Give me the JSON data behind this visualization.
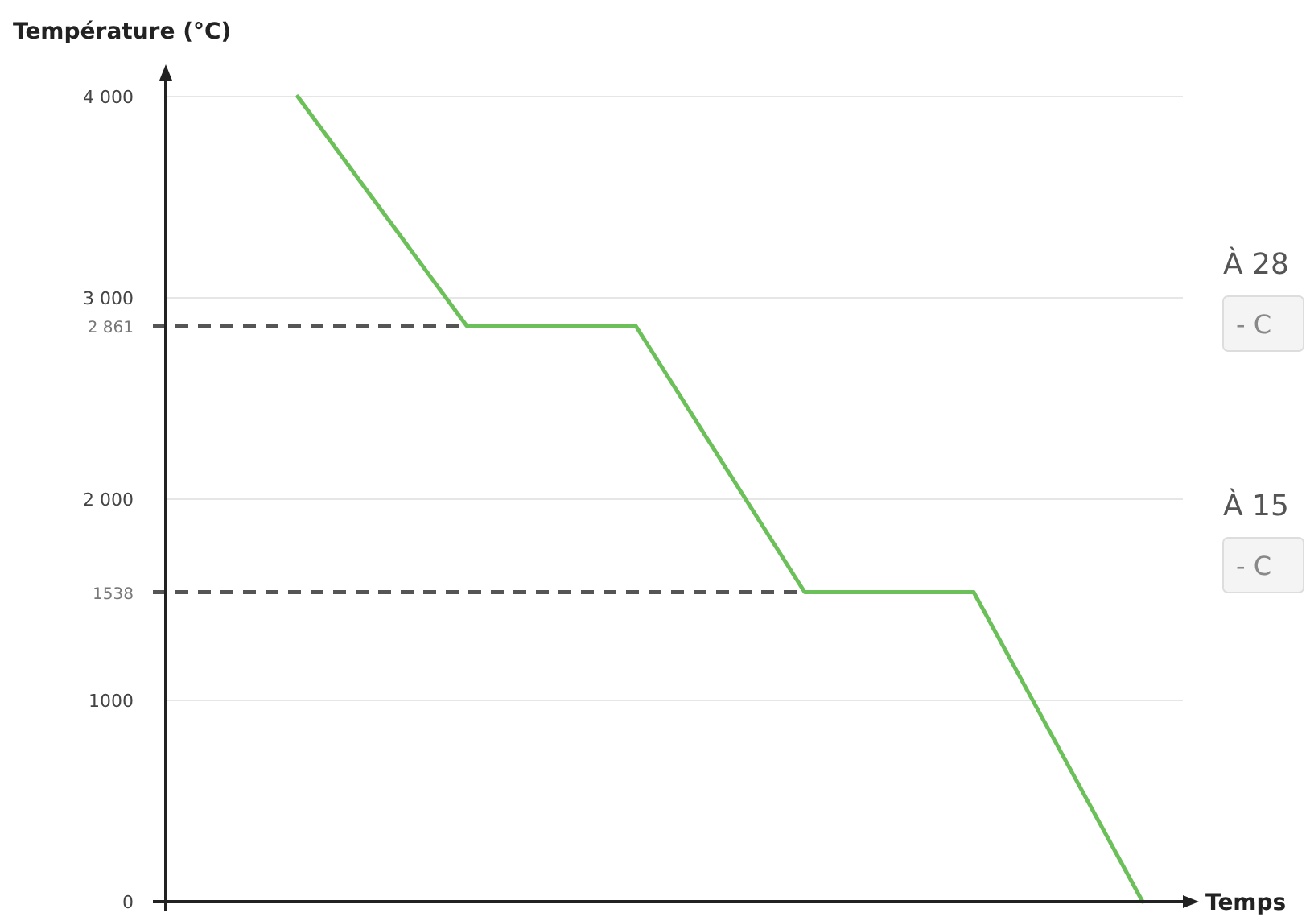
{
  "chart_data": {
    "type": "line",
    "ylabel": "Température (°C)",
    "xlabel": "Temps",
    "categories": [
      null,
      null,
      null,
      null,
      null,
      null
    ],
    "series": [
      {
        "color": "#6cc05a",
        "values": [
          4000,
          2861,
          2861,
          1538,
          1538,
          0
        ]
      }
    ],
    "ylim": [
      0,
      4000
    ],
    "yticks": [
      0,
      {
        "value": 1000,
        "label": "1000"
      },
      {
        "value": 2000,
        "label": "2 000"
      },
      {
        "value": 3000,
        "label": "3 000"
      },
      {
        "value": 4000,
        "label": "4 000"
      }
    ],
    "tick_labels": "y",
    "grid": "y",
    "marker": "none",
    "line_style": "solid",
    "ref_lines": [
      {
        "axis": "y",
        "value": 2861,
        "label": "2 861",
        "line_style": "dashed",
        "color": "#555555"
      },
      {
        "axis": "y",
        "value": 1538,
        "label": "1538",
        "line_style": "dashed",
        "color": "#555555"
      }
    ],
    "annotations": [
      "À 28",
      "- C",
      "À 15",
      "- C"
    ]
  }
}
